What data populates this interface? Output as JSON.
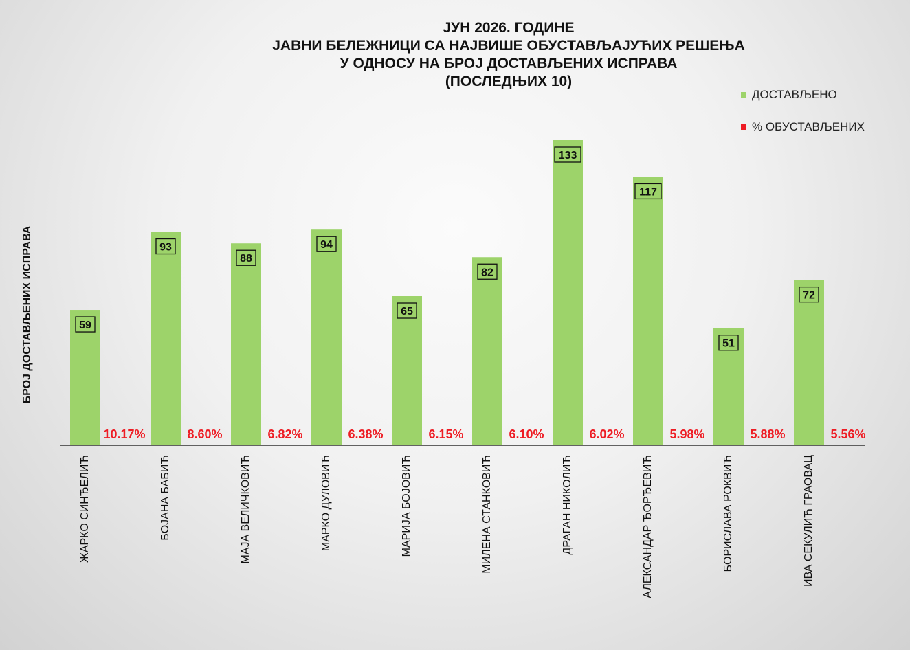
{
  "chart_data": {
    "type": "bar",
    "title_lines": [
      "ЈУН 2026. ГОДИНЕ",
      "ЈАВНИ БЕЛЕЖНИЦИ СА НАЈВИШЕ ОБУСТАВЉАЈУЋИХ РЕШЕЊА",
      "У ОДНОСУ НА БРОЈ ДОСТАВЉЕНИХ ИСПРАВА",
      "(ПОСЛЕДЊИХ 10)"
    ],
    "ylabel": "БРОЈ ДОСТАВЉЕНИХ  ИСПРАВА",
    "xlabel": "",
    "ylim": [
      0,
      140
    ],
    "grid": false,
    "legend_position": "top-right",
    "categories": [
      "ЖАРКО СИНЂЕЛИЋ",
      "БОЈАНА БАБИЋ",
      "МАЈА ВЕЛИЧКОВИЋ",
      "МАРКО ДУЛОВИЋ",
      "МАРИЈА БОЈОВИЋ",
      "МИЛЕНА СТАНКОВИЋ",
      "ДРАГАН НИКОЛИЋ",
      "АЛЕКСАНДАР ЂОРЂЕВИЋ",
      "БОРИСЛАВА РОКВИЋ",
      "ИВА СЕКУЛИЋ ГРАОВАЦ"
    ],
    "series": [
      {
        "name": "ДОСТАВЉЕНО",
        "color": "#9dd36a",
        "values": [
          59,
          93,
          88,
          94,
          65,
          82,
          133,
          117,
          51,
          72
        ],
        "labels": [
          "59",
          "93",
          "88",
          "94",
          "65",
          "82",
          "133",
          "117",
          "51",
          "72"
        ]
      },
      {
        "name": "% ОБУСТАВЉЕНИХ",
        "color": "#ee1c24",
        "values": [
          10.17,
          8.6,
          6.82,
          6.38,
          6.15,
          6.1,
          6.02,
          5.98,
          5.88,
          5.56
        ],
        "labels": [
          "10.17%",
          "8.60%",
          "6.82%",
          "6.38%",
          "6.15%",
          "6.10%",
          "6.02%",
          "5.98%",
          "5.88%",
          "5.56%"
        ]
      }
    ]
  }
}
